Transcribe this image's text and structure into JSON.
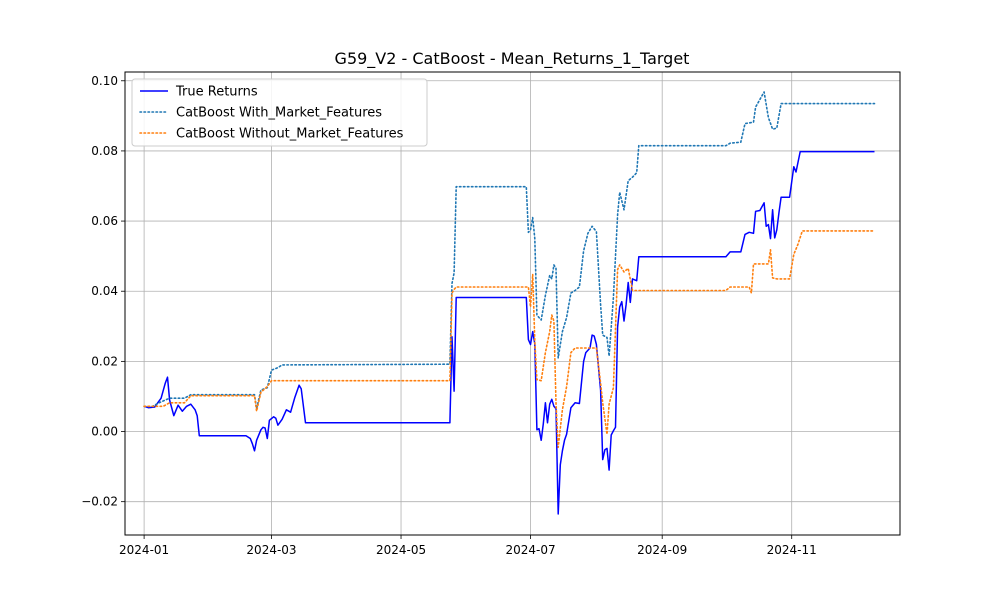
{
  "chart_data": {
    "type": "line",
    "title": "G59_V2 - CatBoost - Mean_Returns_1_Target",
    "xlabel": "",
    "ylabel": "",
    "x_axis": {
      "type": "date",
      "range": [
        "2023-12-23",
        "2024-12-22"
      ],
      "ticks": [
        {
          "value": "2024-01-01",
          "label": "2024-01"
        },
        {
          "value": "2024-03-01",
          "label": "2024-03"
        },
        {
          "value": "2024-05-01",
          "label": "2024-05"
        },
        {
          "value": "2024-07-01",
          "label": "2024-07"
        },
        {
          "value": "2024-09-01",
          "label": "2024-09"
        },
        {
          "value": "2024-11-01",
          "label": "2024-11"
        }
      ]
    },
    "y_axis": {
      "range": [
        -0.0295,
        0.1025
      ],
      "ticks": [
        {
          "value": -0.02,
          "label": "−0.02"
        },
        {
          "value": 0.0,
          "label": "0.00"
        },
        {
          "value": 0.02,
          "label": "0.02"
        },
        {
          "value": 0.04,
          "label": "0.04"
        },
        {
          "value": 0.06,
          "label": "0.06"
        },
        {
          "value": 0.08,
          "label": "0.08"
        },
        {
          "value": 0.1,
          "label": "0.10"
        }
      ]
    },
    "grid": true,
    "legend_position": "upper-left",
    "series": [
      {
        "name": "True Returns",
        "color": "#0000ff",
        "style": "solid",
        "points": [
          [
            "2024-01-01",
            0.0072
          ],
          [
            "2024-01-03",
            0.0068
          ],
          [
            "2024-01-06",
            0.007
          ],
          [
            "2024-01-09",
            0.0095
          ],
          [
            "2024-01-11",
            0.0138
          ],
          [
            "2024-01-12",
            0.0155
          ],
          [
            "2024-01-13",
            0.009
          ],
          [
            "2024-01-15",
            0.0045
          ],
          [
            "2024-01-17",
            0.0075
          ],
          [
            "2024-01-19",
            0.0058
          ],
          [
            "2024-01-21",
            0.0072
          ],
          [
            "2024-01-23",
            0.0078
          ],
          [
            "2024-01-25",
            0.0062
          ],
          [
            "2024-01-26",
            0.0045
          ],
          [
            "2024-01-27",
            -0.0012
          ],
          [
            "2024-02-18",
            -0.0012
          ],
          [
            "2024-02-20",
            -0.002
          ],
          [
            "2024-02-21",
            -0.0035
          ],
          [
            "2024-02-22",
            -0.0055
          ],
          [
            "2024-02-23",
            -0.0025
          ],
          [
            "2024-02-25",
            0.0005
          ],
          [
            "2024-02-26",
            0.0012
          ],
          [
            "2024-02-27",
            0.001
          ],
          [
            "2024-02-28",
            -0.002
          ],
          [
            "2024-02-29",
            0.0032
          ],
          [
            "2024-03-02",
            0.0042
          ],
          [
            "2024-03-03",
            0.0038
          ],
          [
            "2024-03-04",
            0.0018
          ],
          [
            "2024-03-06",
            0.0035
          ],
          [
            "2024-03-08",
            0.0062
          ],
          [
            "2024-03-10",
            0.0055
          ],
          [
            "2024-03-12",
            0.0098
          ],
          [
            "2024-03-14",
            0.0132
          ],
          [
            "2024-03-15",
            0.0122
          ],
          [
            "2024-03-17",
            0.0025
          ],
          [
            "2024-05-24",
            0.0025
          ],
          [
            "2024-05-25",
            0.027
          ],
          [
            "2024-05-26",
            0.0115
          ],
          [
            "2024-05-27",
            0.0382
          ],
          [
            "2024-06-29",
            0.0382
          ],
          [
            "2024-06-30",
            0.0262
          ],
          [
            "2024-07-01",
            0.0248
          ],
          [
            "2024-07-02",
            0.0285
          ],
          [
            "2024-07-03",
            0.025
          ],
          [
            "2024-07-04",
            0.0005
          ],
          [
            "2024-07-05",
            0.0008
          ],
          [
            "2024-07-06",
            -0.0025
          ],
          [
            "2024-07-07",
            0.0022
          ],
          [
            "2024-07-08",
            0.0082
          ],
          [
            "2024-07-09",
            0.0025
          ],
          [
            "2024-07-10",
            0.0078
          ],
          [
            "2024-07-11",
            0.0092
          ],
          [
            "2024-07-12",
            0.0072
          ],
          [
            "2024-07-13",
            0.0065
          ],
          [
            "2024-07-14",
            -0.0235
          ],
          [
            "2024-07-15",
            -0.0095
          ],
          [
            "2024-07-16",
            -0.0055
          ],
          [
            "2024-07-17",
            -0.0025
          ],
          [
            "2024-07-18",
            -0.0008
          ],
          [
            "2024-07-20",
            0.0068
          ],
          [
            "2024-07-22",
            0.0082
          ],
          [
            "2024-07-24",
            0.008
          ],
          [
            "2024-07-26",
            0.02
          ],
          [
            "2024-07-27",
            0.0225
          ],
          [
            "2024-07-29",
            0.0238
          ],
          [
            "2024-07-30",
            0.0275
          ],
          [
            "2024-07-31",
            0.0272
          ],
          [
            "2024-08-01",
            0.0248
          ],
          [
            "2024-08-03",
            0.0118
          ],
          [
            "2024-08-04",
            -0.008
          ],
          [
            "2024-08-05",
            -0.0052
          ],
          [
            "2024-08-06",
            -0.0048
          ],
          [
            "2024-08-07",
            -0.011
          ],
          [
            "2024-08-08",
            -0.001
          ],
          [
            "2024-08-09",
            0.0002
          ],
          [
            "2024-08-10",
            0.0012
          ],
          [
            "2024-08-11",
            0.0298
          ],
          [
            "2024-08-12",
            0.0355
          ],
          [
            "2024-08-13",
            0.037
          ],
          [
            "2024-08-14",
            0.0315
          ],
          [
            "2024-08-15",
            0.0362
          ],
          [
            "2024-08-16",
            0.0425
          ],
          [
            "2024-08-17",
            0.0368
          ],
          [
            "2024-08-18",
            0.0435
          ],
          [
            "2024-08-20",
            0.043
          ],
          [
            "2024-08-21",
            0.0498
          ],
          [
            "2024-10-01",
            0.0498
          ],
          [
            "2024-10-03",
            0.0512
          ],
          [
            "2024-10-08",
            0.0512
          ],
          [
            "2024-10-10",
            0.0562
          ],
          [
            "2024-10-12",
            0.0568
          ],
          [
            "2024-10-14",
            0.0565
          ],
          [
            "2024-10-15",
            0.0628
          ],
          [
            "2024-10-17",
            0.063
          ],
          [
            "2024-10-19",
            0.0652
          ],
          [
            "2024-10-20",
            0.0585
          ],
          [
            "2024-10-21",
            0.059
          ],
          [
            "2024-10-22",
            0.055
          ],
          [
            "2024-10-23",
            0.0632
          ],
          [
            "2024-10-24",
            0.0552
          ],
          [
            "2024-10-25",
            0.0575
          ],
          [
            "2024-10-26",
            0.0625
          ],
          [
            "2024-10-27",
            0.0668
          ],
          [
            "2024-10-31",
            0.0668
          ],
          [
            "2024-11-02",
            0.0755
          ],
          [
            "2024-11-03",
            0.074
          ],
          [
            "2024-11-05",
            0.0798
          ],
          [
            "2024-12-10",
            0.0798
          ]
        ]
      },
      {
        "name": "CatBoost With_Market_Features",
        "color": "#1f77b4",
        "style": "dotted",
        "points": [
          [
            "2024-01-01",
            0.0072
          ],
          [
            "2024-01-05",
            0.0072
          ],
          [
            "2024-01-08",
            0.0082
          ],
          [
            "2024-01-13",
            0.0095
          ],
          [
            "2024-01-20",
            0.0095
          ],
          [
            "2024-01-23",
            0.0105
          ],
          [
            "2024-02-22",
            0.0105
          ],
          [
            "2024-02-23",
            0.0065
          ],
          [
            "2024-02-25",
            0.0118
          ],
          [
            "2024-02-28",
            0.0125
          ],
          [
            "2024-03-01",
            0.0175
          ],
          [
            "2024-03-04",
            0.0182
          ],
          [
            "2024-03-06",
            0.019
          ],
          [
            "2024-05-24",
            0.0192
          ],
          [
            "2024-05-25",
            0.0422
          ],
          [
            "2024-05-26",
            0.0452
          ],
          [
            "2024-05-27",
            0.0698
          ],
          [
            "2024-06-29",
            0.0698
          ],
          [
            "2024-06-30",
            0.0568
          ],
          [
            "2024-07-01",
            0.0575
          ],
          [
            "2024-07-02",
            0.061
          ],
          [
            "2024-07-03",
            0.055
          ],
          [
            "2024-07-04",
            0.0332
          ],
          [
            "2024-07-06",
            0.0318
          ],
          [
            "2024-07-08",
            0.0388
          ],
          [
            "2024-07-10",
            0.0445
          ],
          [
            "2024-07-11",
            0.0435
          ],
          [
            "2024-07-12",
            0.0475
          ],
          [
            "2024-07-13",
            0.0465
          ],
          [
            "2024-07-14",
            0.021
          ],
          [
            "2024-07-16",
            0.0285
          ],
          [
            "2024-07-18",
            0.0325
          ],
          [
            "2024-07-20",
            0.0395
          ],
          [
            "2024-07-22",
            0.0402
          ],
          [
            "2024-07-24",
            0.0412
          ],
          [
            "2024-07-26",
            0.0515
          ],
          [
            "2024-07-28",
            0.0565
          ],
          [
            "2024-07-30",
            0.0585
          ],
          [
            "2024-08-01",
            0.057
          ],
          [
            "2024-08-03",
            0.0362
          ],
          [
            "2024-08-04",
            0.0275
          ],
          [
            "2024-08-06",
            0.0268
          ],
          [
            "2024-08-07",
            0.0215
          ],
          [
            "2024-08-09",
            0.0382
          ],
          [
            "2024-08-11",
            0.0618
          ],
          [
            "2024-08-12",
            0.0682
          ],
          [
            "2024-08-14",
            0.0632
          ],
          [
            "2024-08-16",
            0.0715
          ],
          [
            "2024-08-18",
            0.0725
          ],
          [
            "2024-08-20",
            0.0738
          ],
          [
            "2024-08-21",
            0.0815
          ],
          [
            "2024-10-01",
            0.0815
          ],
          [
            "2024-10-03",
            0.0822
          ],
          [
            "2024-10-08",
            0.0825
          ],
          [
            "2024-10-10",
            0.0878
          ],
          [
            "2024-10-14",
            0.0882
          ],
          [
            "2024-10-15",
            0.0925
          ],
          [
            "2024-10-19",
            0.0968
          ],
          [
            "2024-10-21",
            0.0895
          ],
          [
            "2024-10-23",
            0.0862
          ],
          [
            "2024-10-25",
            0.0865
          ],
          [
            "2024-10-27",
            0.0935
          ],
          [
            "2024-12-10",
            0.0935
          ]
        ]
      },
      {
        "name": "CatBoost Without_Market_Features",
        "color": "#ff7f0e",
        "style": "dotted",
        "points": [
          [
            "2024-01-01",
            0.0072
          ],
          [
            "2024-01-10",
            0.0072
          ],
          [
            "2024-01-13",
            0.0082
          ],
          [
            "2024-01-20",
            0.0082
          ],
          [
            "2024-01-23",
            0.0102
          ],
          [
            "2024-02-22",
            0.0102
          ],
          [
            "2024-02-23",
            0.0058
          ],
          [
            "2024-02-25",
            0.0112
          ],
          [
            "2024-02-28",
            0.0128
          ],
          [
            "2024-03-01",
            0.0145
          ],
          [
            "2024-05-24",
            0.0145
          ],
          [
            "2024-05-25",
            0.0395
          ],
          [
            "2024-05-26",
            0.0405
          ],
          [
            "2024-05-27",
            0.0412
          ],
          [
            "2024-06-30",
            0.0412
          ],
          [
            "2024-07-01",
            0.0355
          ],
          [
            "2024-07-02",
            0.0448
          ],
          [
            "2024-07-03",
            0.0258
          ],
          [
            "2024-07-04",
            0.0148
          ],
          [
            "2024-07-06",
            0.0145
          ],
          [
            "2024-07-08",
            0.0225
          ],
          [
            "2024-07-10",
            0.0285
          ],
          [
            "2024-07-11",
            0.0332
          ],
          [
            "2024-07-12",
            0.0315
          ],
          [
            "2024-07-13",
            0.0082
          ],
          [
            "2024-07-14",
            -0.0045
          ],
          [
            "2024-07-16",
            0.0062
          ],
          [
            "2024-07-18",
            0.0128
          ],
          [
            "2024-07-20",
            0.0225
          ],
          [
            "2024-07-22",
            0.0238
          ],
          [
            "2024-08-01",
            0.0238
          ],
          [
            "2024-08-03",
            0.0138
          ],
          [
            "2024-08-04",
            0.0082
          ],
          [
            "2024-08-06",
            -0.0008
          ],
          [
            "2024-08-07",
            0.0078
          ],
          [
            "2024-08-09",
            0.0125
          ],
          [
            "2024-08-11",
            0.0462
          ],
          [
            "2024-08-12",
            0.0475
          ],
          [
            "2024-08-14",
            0.0455
          ],
          [
            "2024-08-16",
            0.0465
          ],
          [
            "2024-08-18",
            0.0402
          ],
          [
            "2024-10-01",
            0.0402
          ],
          [
            "2024-10-03",
            0.0412
          ],
          [
            "2024-10-12",
            0.0412
          ],
          [
            "2024-10-13",
            0.0395
          ],
          [
            "2024-10-14",
            0.0478
          ],
          [
            "2024-10-21",
            0.0478
          ],
          [
            "2024-10-22",
            0.0518
          ],
          [
            "2024-10-23",
            0.0438
          ],
          [
            "2024-10-25",
            0.0435
          ],
          [
            "2024-10-31",
            0.0435
          ],
          [
            "2024-11-02",
            0.0505
          ],
          [
            "2024-11-04",
            0.0535
          ],
          [
            "2024-11-06",
            0.0572
          ],
          [
            "2024-12-10",
            0.0572
          ]
        ]
      }
    ]
  }
}
